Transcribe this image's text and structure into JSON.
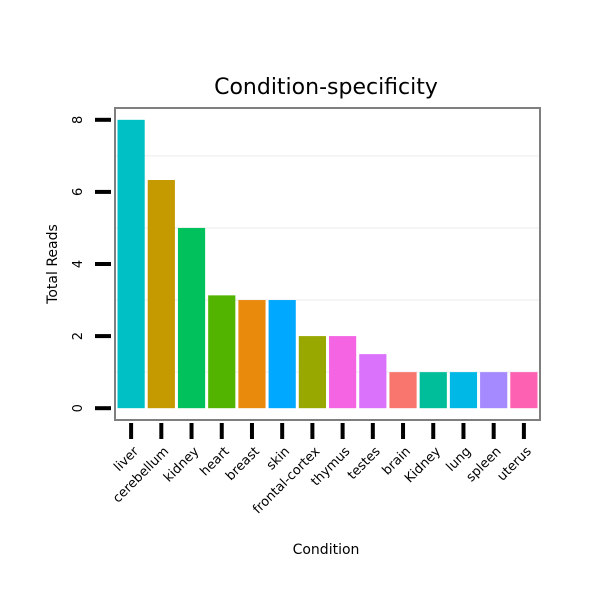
{
  "chart_data": {
    "type": "bar",
    "title": "Condition-specificity",
    "xlabel": "Condition",
    "ylabel": "Total Reads",
    "ylim": [
      -0.3,
      8.3
    ],
    "yticks": [
      0,
      2,
      4,
      6,
      8
    ],
    "grid": true,
    "categories": [
      "liver",
      "cerebellum",
      "kidney",
      "heart",
      "breast",
      "skin",
      "frontal-cortex",
      "thymus",
      "testes",
      "brain",
      "Kidney",
      "lung",
      "spleen",
      "uterus"
    ],
    "values": [
      8,
      6.33,
      5,
      3.13,
      3,
      3,
      2,
      2,
      1.5,
      1,
      1,
      1,
      1,
      1
    ],
    "colors": [
      "#00C0C5",
      "#C49A00",
      "#00C15B",
      "#53B400",
      "#E98A0D",
      "#00A9FF",
      "#99A800",
      "#F464E3",
      "#DB72FB",
      "#F8766D",
      "#00BE99",
      "#00B8E6",
      "#A58AFF",
      "#FD61B1"
    ]
  }
}
